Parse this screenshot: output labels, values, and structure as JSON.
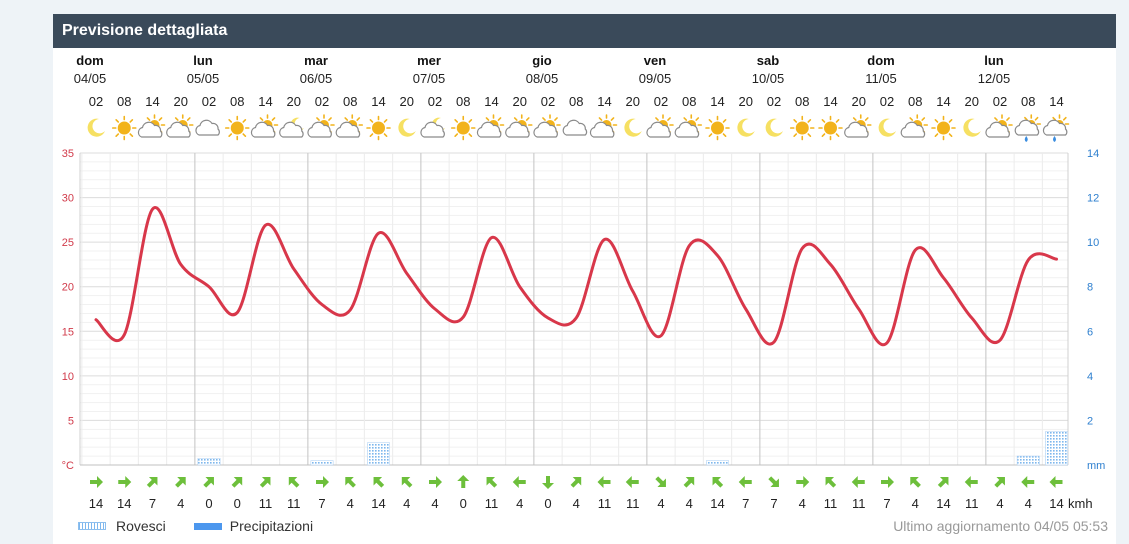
{
  "header": {
    "title": "Previsione dettagliata"
  },
  "days": [
    {
      "name": "dom",
      "date": "04/05"
    },
    {
      "name": "lun",
      "date": "05/05"
    },
    {
      "name": "mar",
      "date": "06/05"
    },
    {
      "name": "mer",
      "date": "07/05"
    },
    {
      "name": "gio",
      "date": "08/05"
    },
    {
      "name": "ven",
      "date": "09/05"
    },
    {
      "name": "sab",
      "date": "10/05"
    },
    {
      "name": "dom",
      "date": "11/05"
    },
    {
      "name": "lun",
      "date": "12/05"
    }
  ],
  "hours": [
    "02",
    "08",
    "14",
    "20",
    "02",
    "08",
    "14",
    "20",
    "02",
    "08",
    "14",
    "20",
    "02",
    "08",
    "14",
    "20",
    "02",
    "08",
    "14",
    "20",
    "02",
    "08",
    "14",
    "20",
    "02",
    "08",
    "14",
    "20",
    "02",
    "08",
    "14",
    "20",
    "02",
    "08",
    "14"
  ],
  "icons": [
    "moon",
    "sun",
    "sun-cloud",
    "sun-cloud",
    "cloud",
    "sun",
    "sun-cloud",
    "moon-cloud",
    "sun-cloud",
    "sun-cloud",
    "sun",
    "moon",
    "moon-cloud",
    "sun",
    "sun-cloud",
    "sun-cloud",
    "sun-cloud",
    "cloud",
    "sun-cloud",
    "moon",
    "sun-cloud",
    "sun-cloud",
    "sun",
    "moon",
    "moon",
    "sun",
    "sun",
    "sun-cloud",
    "moon",
    "sun-cloud",
    "sun",
    "moon",
    "sun-cloud",
    "rain-cloud",
    "rain-cloud"
  ],
  "chart_data": {
    "type": "line",
    "series": [
      {
        "values": [
          16.3,
          14.6,
          28.7,
          22.5,
          20.0,
          17.1,
          26.9,
          22.0,
          18.0,
          17.4,
          26.0,
          21.5,
          17.5,
          16.6,
          25.5,
          20.0,
          16.5,
          16.5,
          25.3,
          19.5,
          14.5,
          24.6,
          23.5,
          17.5,
          13.8,
          24.3,
          22.5,
          17.5,
          13.7,
          24.1,
          21.0,
          16.5,
          14.0,
          23.0,
          23.1
        ]
      }
    ],
    "precipitation_mm": [
      0,
      0,
      0,
      0,
      0.3,
      0,
      0,
      0,
      0.2,
      0,
      1.0,
      0,
      0,
      0,
      0,
      0,
      0,
      0,
      0,
      0,
      0,
      0,
      0.2,
      0,
      0,
      0,
      0,
      0,
      0,
      0,
      0,
      0,
      0,
      0.4,
      1.5
    ],
    "ylim": [
      0,
      35
    ],
    "y2lim": [
      0,
      14
    ],
    "yticks": [
      "°C",
      "5",
      "10",
      "15",
      "20",
      "25",
      "30",
      "35"
    ],
    "y2ticks": [
      "mm",
      "2",
      "4",
      "6",
      "8",
      "10",
      "12",
      "14"
    ],
    "grid": true
  },
  "wind": {
    "directions_deg": [
      90,
      90,
      45,
      45,
      45,
      45,
      45,
      315,
      90,
      315,
      315,
      315,
      90,
      0,
      315,
      270,
      180,
      45,
      270,
      270,
      135,
      45,
      315,
      270,
      135,
      90,
      315,
      270,
      90,
      315,
      45,
      270,
      45,
      270,
      270
    ],
    "speeds": [
      "14",
      "14",
      "7",
      "4",
      "0",
      "0",
      "11",
      "11",
      "7",
      "4",
      "14",
      "4",
      "4",
      "0",
      "11",
      "4",
      "0",
      "4",
      "11",
      "11",
      "4",
      "4",
      "14",
      "7",
      "7",
      "4",
      "11",
      "11",
      "7",
      "4",
      "14",
      "11",
      "4",
      "4",
      "14"
    ],
    "unit": "kmh"
  },
  "legend": {
    "rovesci": "Rovesci",
    "precipitazioni": "Precipitazioni"
  },
  "footer": {
    "updated": "Ultimo aggiornamento 04/05 05:53"
  },
  "colors": {
    "temperature": "#d8374a",
    "rovesci": "#7db7ee",
    "precipitazioni": "#4c97ee",
    "wind": "#6dbf3b",
    "header": "#3a4a5a",
    "sun": "#f2b31b"
  }
}
